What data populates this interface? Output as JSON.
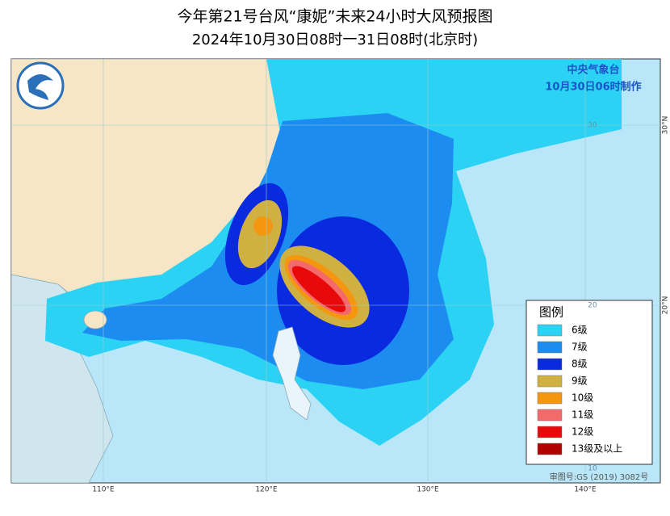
{
  "title": "今年第21号台风“康妮”未来24小时大风预报图",
  "subtitle": "2024年10月30日08时一31日08时(北京时)",
  "agency": "中央气象台",
  "issue_time": "10月30日06时制作",
  "legend": {
    "title": "图例",
    "items": [
      {
        "label": "6级",
        "color": "#2bd2f4"
      },
      {
        "label": "7级",
        "color": "#1d8cf0"
      },
      {
        "label": "8级",
        "color": "#0a2ae0"
      },
      {
        "label": "9级",
        "color": "#cfb040"
      },
      {
        "label": "10级",
        "color": "#f5960f"
      },
      {
        "label": "11级",
        "color": "#f46a6a"
      },
      {
        "label": "12级",
        "color": "#e80a0a"
      },
      {
        "label": "13级及以上",
        "color": "#b00000"
      }
    ]
  },
  "lon_labels": [
    "110°E",
    "120°E",
    "130°E",
    "140°E"
  ],
  "lat_labels": [
    "30°N",
    "20°N"
  ],
  "inner_labels": [
    "30",
    "20",
    "10"
  ],
  "review_number": "审图号:GS (2019) 3082号"
}
